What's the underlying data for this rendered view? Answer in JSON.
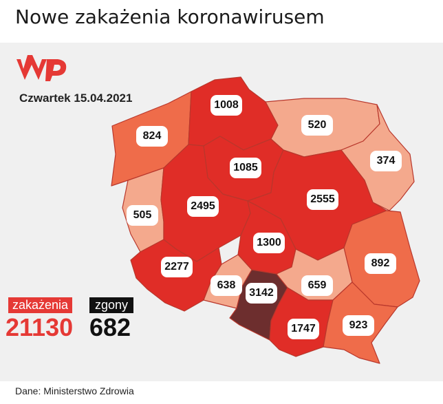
{
  "title": "Nowe zakażenia koronawirusem",
  "logo": "WP",
  "date": "Czwartek 15.04.2021",
  "regions": [
    {
      "id": "zachodniopomorskie",
      "value": "824",
      "color": "#ef6c4a"
    },
    {
      "id": "pomorskie",
      "value": "1008",
      "color": "#e02d27"
    },
    {
      "id": "warminsko-mazurskie",
      "value": "520",
      "color": "#f4a98d"
    },
    {
      "id": "podlaskie",
      "value": "374",
      "color": "#f4a98d"
    },
    {
      "id": "kujawsko-pomorskie",
      "value": "1085",
      "color": "#e02d27"
    },
    {
      "id": "lubuskie",
      "value": "505",
      "color": "#f4a98d"
    },
    {
      "id": "wielkopolskie",
      "value": "2495",
      "color": "#e02d27"
    },
    {
      "id": "mazowieckie",
      "value": "2555",
      "color": "#e02d27"
    },
    {
      "id": "lodzkie",
      "value": "1300",
      "color": "#e02d27"
    },
    {
      "id": "lubelskie",
      "value": "892",
      "color": "#ef6c4a"
    },
    {
      "id": "dolnoslaskie",
      "value": "2277",
      "color": "#e02d27"
    },
    {
      "id": "opolskie",
      "value": "638",
      "color": "#f4a98d"
    },
    {
      "id": "slaskie",
      "value": "3142",
      "color": "#6d2e2e"
    },
    {
      "id": "swietokrzyskie",
      "value": "659",
      "color": "#f4a98d"
    },
    {
      "id": "malopolskie",
      "value": "1747",
      "color": "#e02d27"
    },
    {
      "id": "podkarpackie",
      "value": "923",
      "color": "#ef6c4a"
    }
  ],
  "summary": {
    "cases_label": "zakażenia",
    "cases_value": "21130",
    "deaths_label": "zgony",
    "deaths_value": "682"
  },
  "source": "Dane: Ministerstwo Zdrowia"
}
